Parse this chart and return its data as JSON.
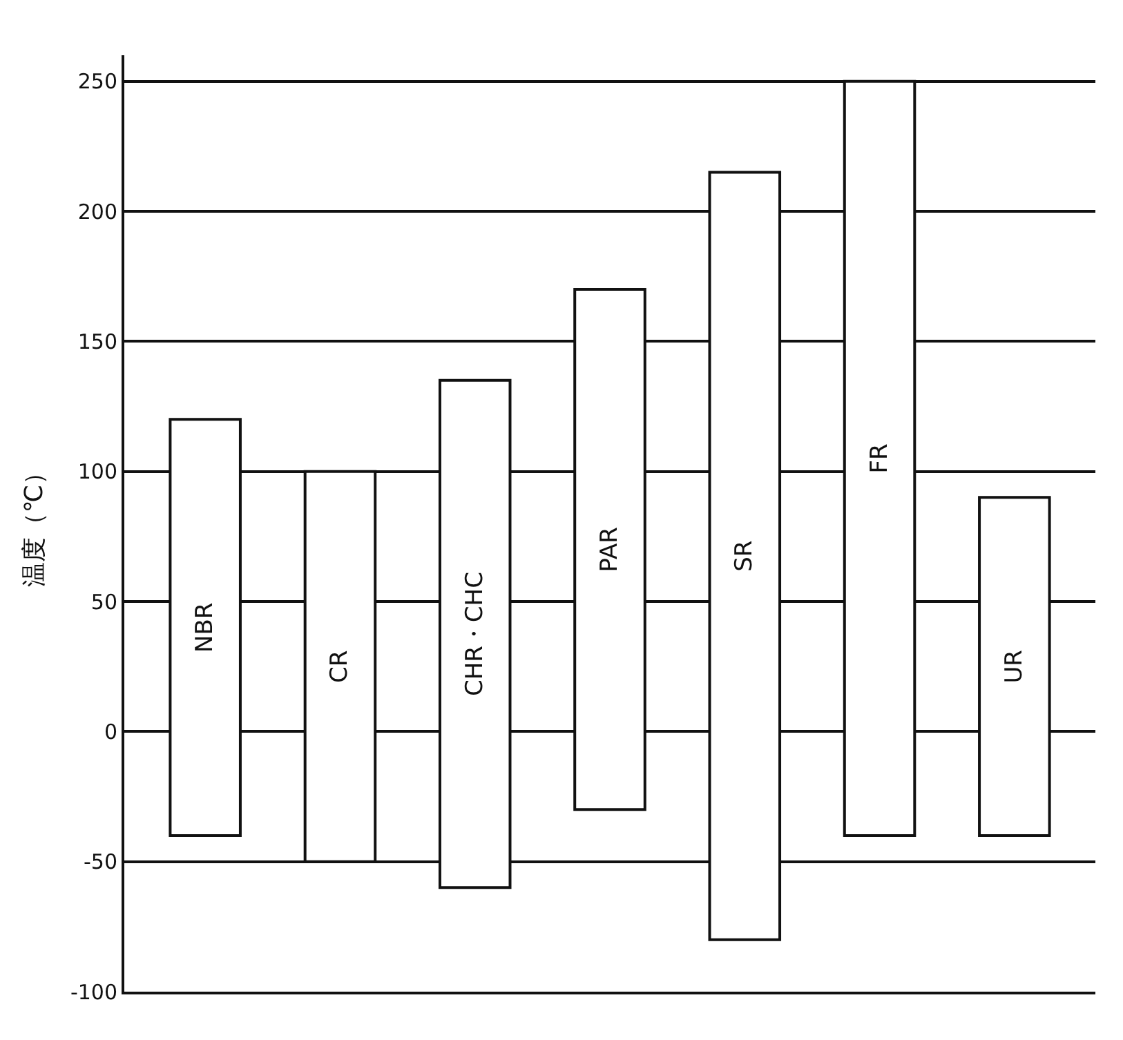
{
  "chart_data": {
    "type": "bar",
    "ylabel": "温度（℃）",
    "categories": [
      "NBR",
      "CR",
      "CHR・CHC",
      "PAR",
      "SR",
      "FR",
      "UR"
    ],
    "base": [
      -40,
      -50,
      -60,
      -30,
      -80,
      -40,
      -40
    ],
    "values": [
      160,
      150,
      195,
      200,
      295,
      290,
      130
    ],
    "color": "#ffffff",
    "ylim": [
      -100,
      260
    ],
    "yticks": [
      -100,
      -50,
      0,
      50,
      100,
      150,
      200,
      250
    ],
    "grid": "y",
    "tick_labels": "y"
  }
}
